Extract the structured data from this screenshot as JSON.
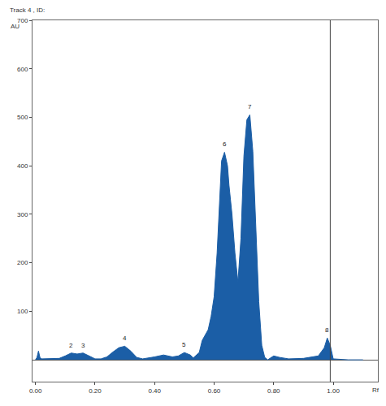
{
  "chart_data": {
    "type": "area",
    "title": "Track 4 , ID:",
    "xlabel": "Rf",
    "ylabel": "AU",
    "color": "#1b5ea6",
    "grid": false,
    "x": [
      0.0,
      0.005,
      0.01,
      0.015,
      0.02,
      0.05,
      0.08,
      0.1,
      0.12,
      0.14,
      0.16,
      0.18,
      0.2,
      0.22,
      0.24,
      0.26,
      0.28,
      0.3,
      0.32,
      0.34,
      0.36,
      0.4,
      0.43,
      0.46,
      0.48,
      0.5,
      0.52,
      0.53,
      0.55,
      0.56,
      0.58,
      0.59,
      0.6,
      0.61,
      0.62,
      0.625,
      0.635,
      0.645,
      0.65,
      0.66,
      0.67,
      0.68,
      0.69,
      0.7,
      0.71,
      0.72,
      0.73,
      0.74,
      0.75,
      0.76,
      0.77,
      0.78,
      0.8,
      0.82,
      0.85,
      0.9,
      0.95,
      0.97,
      0.98,
      0.99,
      1.0,
      1.05,
      1.1
    ],
    "values": [
      0,
      5,
      18,
      5,
      2,
      2,
      3,
      8,
      14,
      12,
      14,
      8,
      2,
      2,
      6,
      16,
      25,
      28,
      18,
      5,
      2,
      6,
      10,
      6,
      8,
      15,
      10,
      4,
      15,
      40,
      62,
      90,
      130,
      220,
      340,
      410,
      428,
      400,
      360,
      300,
      220,
      160,
      250,
      420,
      495,
      505,
      430,
      280,
      120,
      30,
      5,
      0,
      8,
      5,
      2,
      3,
      8,
      25,
      45,
      30,
      2,
      0,
      0
    ],
    "xlim": [
      -0.01,
      1.15
    ],
    "xticks": [
      {
        "value": 0,
        "label": "0.00"
      },
      {
        "value": 0.2,
        "label": "0.20"
      },
      {
        "value": 0.4,
        "label": "0.40"
      },
      {
        "value": 0.6,
        "label": "0.60"
      },
      {
        "value": 0.8,
        "label": "0.80"
      },
      {
        "value": 1.0,
        "label": "1.00"
      }
    ],
    "ylim": [
      -45,
      700
    ],
    "yticks": [
      100,
      200,
      300,
      400,
      500,
      600,
      700
    ],
    "front_x": 0.99,
    "peak_labels": [
      {
        "text": "2",
        "x": 0.12,
        "y": 14
      },
      {
        "text": "3",
        "x": 0.16,
        "y": 14
      },
      {
        "text": "4",
        "x": 0.3,
        "y": 28
      },
      {
        "text": "5",
        "x": 0.5,
        "y": 15
      },
      {
        "text": "6",
        "x": 0.635,
        "y": 428
      },
      {
        "text": "7",
        "x": 0.72,
        "y": 505
      },
      {
        "text": "8",
        "x": 0.98,
        "y": 45
      }
    ]
  }
}
